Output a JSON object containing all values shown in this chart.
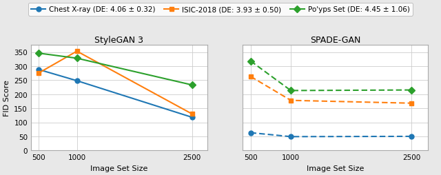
{
  "x": [
    500,
    1000,
    2500
  ],
  "stylegan3": {
    "chest_xray": [
      288,
      248,
      118
    ],
    "isic2018": [
      275,
      353,
      130
    ],
    "polyps": [
      346,
      328,
      233
    ]
  },
  "spadegan": {
    "chest_xray": [
      63,
      49,
      50
    ],
    "isic2018": [
      263,
      178,
      168
    ],
    "polyps": [
      318,
      213,
      215
    ]
  },
  "colors": {
    "chest_xray": "#1f77b4",
    "isic2018": "#ff7f0e",
    "polyps": "#2ca02c"
  },
  "markers": {
    "chest_xray": "o",
    "isic2018": "s",
    "polyps": "D"
  },
  "legend_labels": [
    "Chest X-ray (DE: 4.06 ± 0.32)",
    "ISIC-2018 (DE: 3.93 ± 0.50)",
    "Po'yps Set (DE: 4.45 ± 1.06)"
  ],
  "title_left": "StyleGAN 3",
  "title_right": "SPADE-GAN",
  "xlabel": "Image Set Size",
  "ylabel": "FID Score",
  "ylim": [
    0,
    375
  ],
  "yticks": [
    0,
    50,
    100,
    150,
    200,
    250,
    300,
    350
  ],
  "figure_bg": "#e8e8e8",
  "axes_bg": "#ffffff"
}
